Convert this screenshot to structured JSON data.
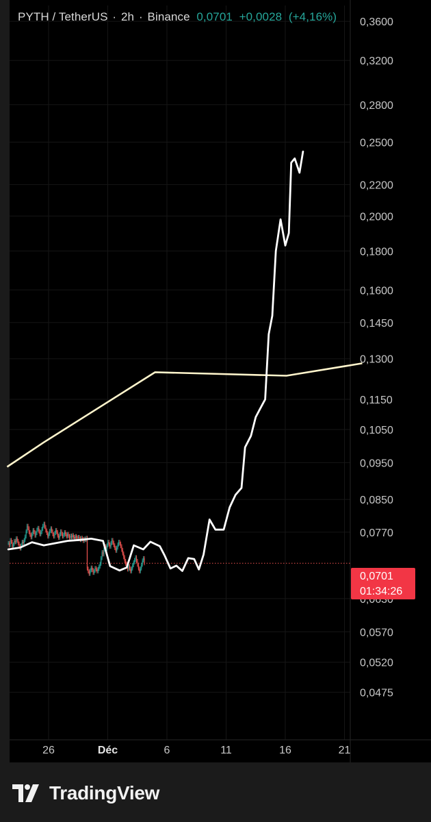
{
  "header": {
    "symbol": "PYTH / TetherUS",
    "interval": "2h",
    "exchange": "Binance",
    "last": "0,0701",
    "change": "+0,0028",
    "change_pct": "(+4,16%)",
    "dot": "·"
  },
  "price_tag": {
    "price": "0,0701",
    "countdown": "01:34:26",
    "color": "#f23645"
  },
  "brand": {
    "name": "TradingView"
  },
  "colors": {
    "up": "#26a69a",
    "down": "#ef5350",
    "overlay": "#ffffff",
    "ma": "#fff5cc",
    "background": "#000000"
  },
  "chart_data": {
    "type": "line",
    "y_scale": "log",
    "ylim": [
      0.0445,
      0.37
    ],
    "y_ticks": [
      "0,3600",
      "0,3200",
      "0,2800",
      "0,2500",
      "0,2200",
      "0,2000",
      "0,1800",
      "0,1600",
      "0,1450",
      "0,1300",
      "0,1150",
      "0,1050",
      "0,0950",
      "0,0850",
      "0,0770",
      "0,0630",
      "0,0570",
      "0,0520",
      "0,0475"
    ],
    "x_ticks": [
      {
        "label": "26",
        "day": 26,
        "bold": false
      },
      {
        "label": "Déc",
        "day": 31,
        "bold": true
      },
      {
        "label": "6",
        "day": 36,
        "bold": false
      },
      {
        "label": "11",
        "day": 41,
        "bold": false
      },
      {
        "label": "16",
        "day": 46,
        "bold": false
      },
      {
        "label": "21",
        "day": 51,
        "bold": false
      }
    ],
    "xlim": [
      22.5,
      53.5
    ],
    "current_price": 0.0701,
    "series": [
      {
        "kind": "candles",
        "x_start": 22.6,
        "x_step": 0.0833,
        "close": [
          0.0745,
          0.074,
          0.0752,
          0.0748,
          0.0736,
          0.0742,
          0.075,
          0.0747,
          0.0756,
          0.075,
          0.0744,
          0.0739,
          0.0733,
          0.074,
          0.0748,
          0.0745,
          0.0752,
          0.076,
          0.0772,
          0.0785,
          0.0779,
          0.077,
          0.0764,
          0.0758,
          0.0766,
          0.0775,
          0.077,
          0.0762,
          0.0768,
          0.0776,
          0.078,
          0.0772,
          0.0765,
          0.077,
          0.0778,
          0.0785,
          0.079,
          0.0782,
          0.0774,
          0.0768,
          0.076,
          0.0766,
          0.0773,
          0.0779,
          0.0772,
          0.0765,
          0.076,
          0.0768,
          0.0775,
          0.077,
          0.0762,
          0.0757,
          0.0765,
          0.0772,
          0.0766,
          0.076,
          0.0764,
          0.077,
          0.0765,
          0.076,
          0.0766,
          0.0761,
          0.0756,
          0.0762,
          0.0758,
          0.0763,
          0.0759,
          0.0755,
          0.0761,
          0.0758,
          0.0754,
          0.0759,
          0.0756,
          0.0752,
          0.0757,
          0.0754,
          0.075,
          0.0755,
          0.0752,
          0.0757,
          0.069,
          0.0684,
          0.0679,
          0.0686,
          0.0692,
          0.0687,
          0.0681,
          0.0685,
          0.0691,
          0.0688,
          0.0684,
          0.0689,
          0.0694,
          0.07,
          0.0712,
          0.0725,
          0.072,
          0.0731,
          0.0738,
          0.0732,
          0.074,
          0.0748,
          0.0742,
          0.0737,
          0.0745,
          0.0752,
          0.0746,
          0.074,
          0.0734,
          0.0728,
          0.0735,
          0.0742,
          0.0748,
          0.0744,
          0.0738,
          0.073,
          0.0722,
          0.0714,
          0.0706,
          0.07,
          0.0694,
          0.0688,
          0.0695,
          0.069,
          0.0684,
          0.069,
          0.0697,
          0.0703,
          0.0708,
          0.0714,
          0.0706,
          0.0698,
          0.069,
          0.0684,
          0.069,
          0.0698,
          0.0707,
          0.0712,
          0.0701
        ]
      },
      {
        "kind": "overlay-line",
        "points": [
          [
            22.6,
            0.0731
          ],
          [
            23.6,
            0.0735
          ],
          [
            24.6,
            0.0747
          ],
          [
            25.6,
            0.074
          ],
          [
            26.6,
            0.0745
          ],
          [
            27.6,
            0.075
          ],
          [
            28.6,
            0.0752
          ],
          [
            29.6,
            0.0755
          ],
          [
            30.6,
            0.075
          ],
          [
            31.2,
            0.0695
          ],
          [
            32.0,
            0.0686
          ],
          [
            32.6,
            0.0692
          ],
          [
            33.2,
            0.074
          ],
          [
            34.0,
            0.0731
          ],
          [
            34.6,
            0.0748
          ],
          [
            35.4,
            0.0738
          ],
          [
            35.8,
            0.0718
          ],
          [
            36.3,
            0.069
          ],
          [
            36.8,
            0.0696
          ],
          [
            37.3,
            0.0685
          ],
          [
            37.8,
            0.0712
          ],
          [
            38.3,
            0.071
          ],
          [
            38.7,
            0.0688
          ],
          [
            39.1,
            0.072
          ],
          [
            39.6,
            0.08
          ],
          [
            40.1,
            0.0776
          ],
          [
            40.8,
            0.0776
          ],
          [
            41.3,
            0.083
          ],
          [
            41.8,
            0.0862
          ],
          [
            42.3,
            0.088
          ],
          [
            42.6,
            0.0995
          ],
          [
            43.1,
            0.103
          ],
          [
            43.5,
            0.109
          ],
          [
            43.9,
            0.112
          ],
          [
            44.3,
            0.115
          ],
          [
            44.6,
            0.14
          ],
          [
            44.9,
            0.148
          ],
          [
            45.2,
            0.18
          ],
          [
            45.6,
            0.198
          ],
          [
            46.0,
            0.183
          ],
          [
            46.3,
            0.19
          ],
          [
            46.5,
            0.235
          ],
          [
            46.8,
            0.238
          ],
          [
            47.2,
            0.228
          ],
          [
            47.5,
            0.243
          ]
        ]
      },
      {
        "kind": "ma-line",
        "points": [
          [
            22.5,
            0.0938
          ],
          [
            25.6,
            0.101
          ],
          [
            35.0,
            0.1248
          ],
          [
            46.1,
            0.1235
          ],
          [
            52.5,
            0.1282
          ]
        ]
      }
    ]
  }
}
